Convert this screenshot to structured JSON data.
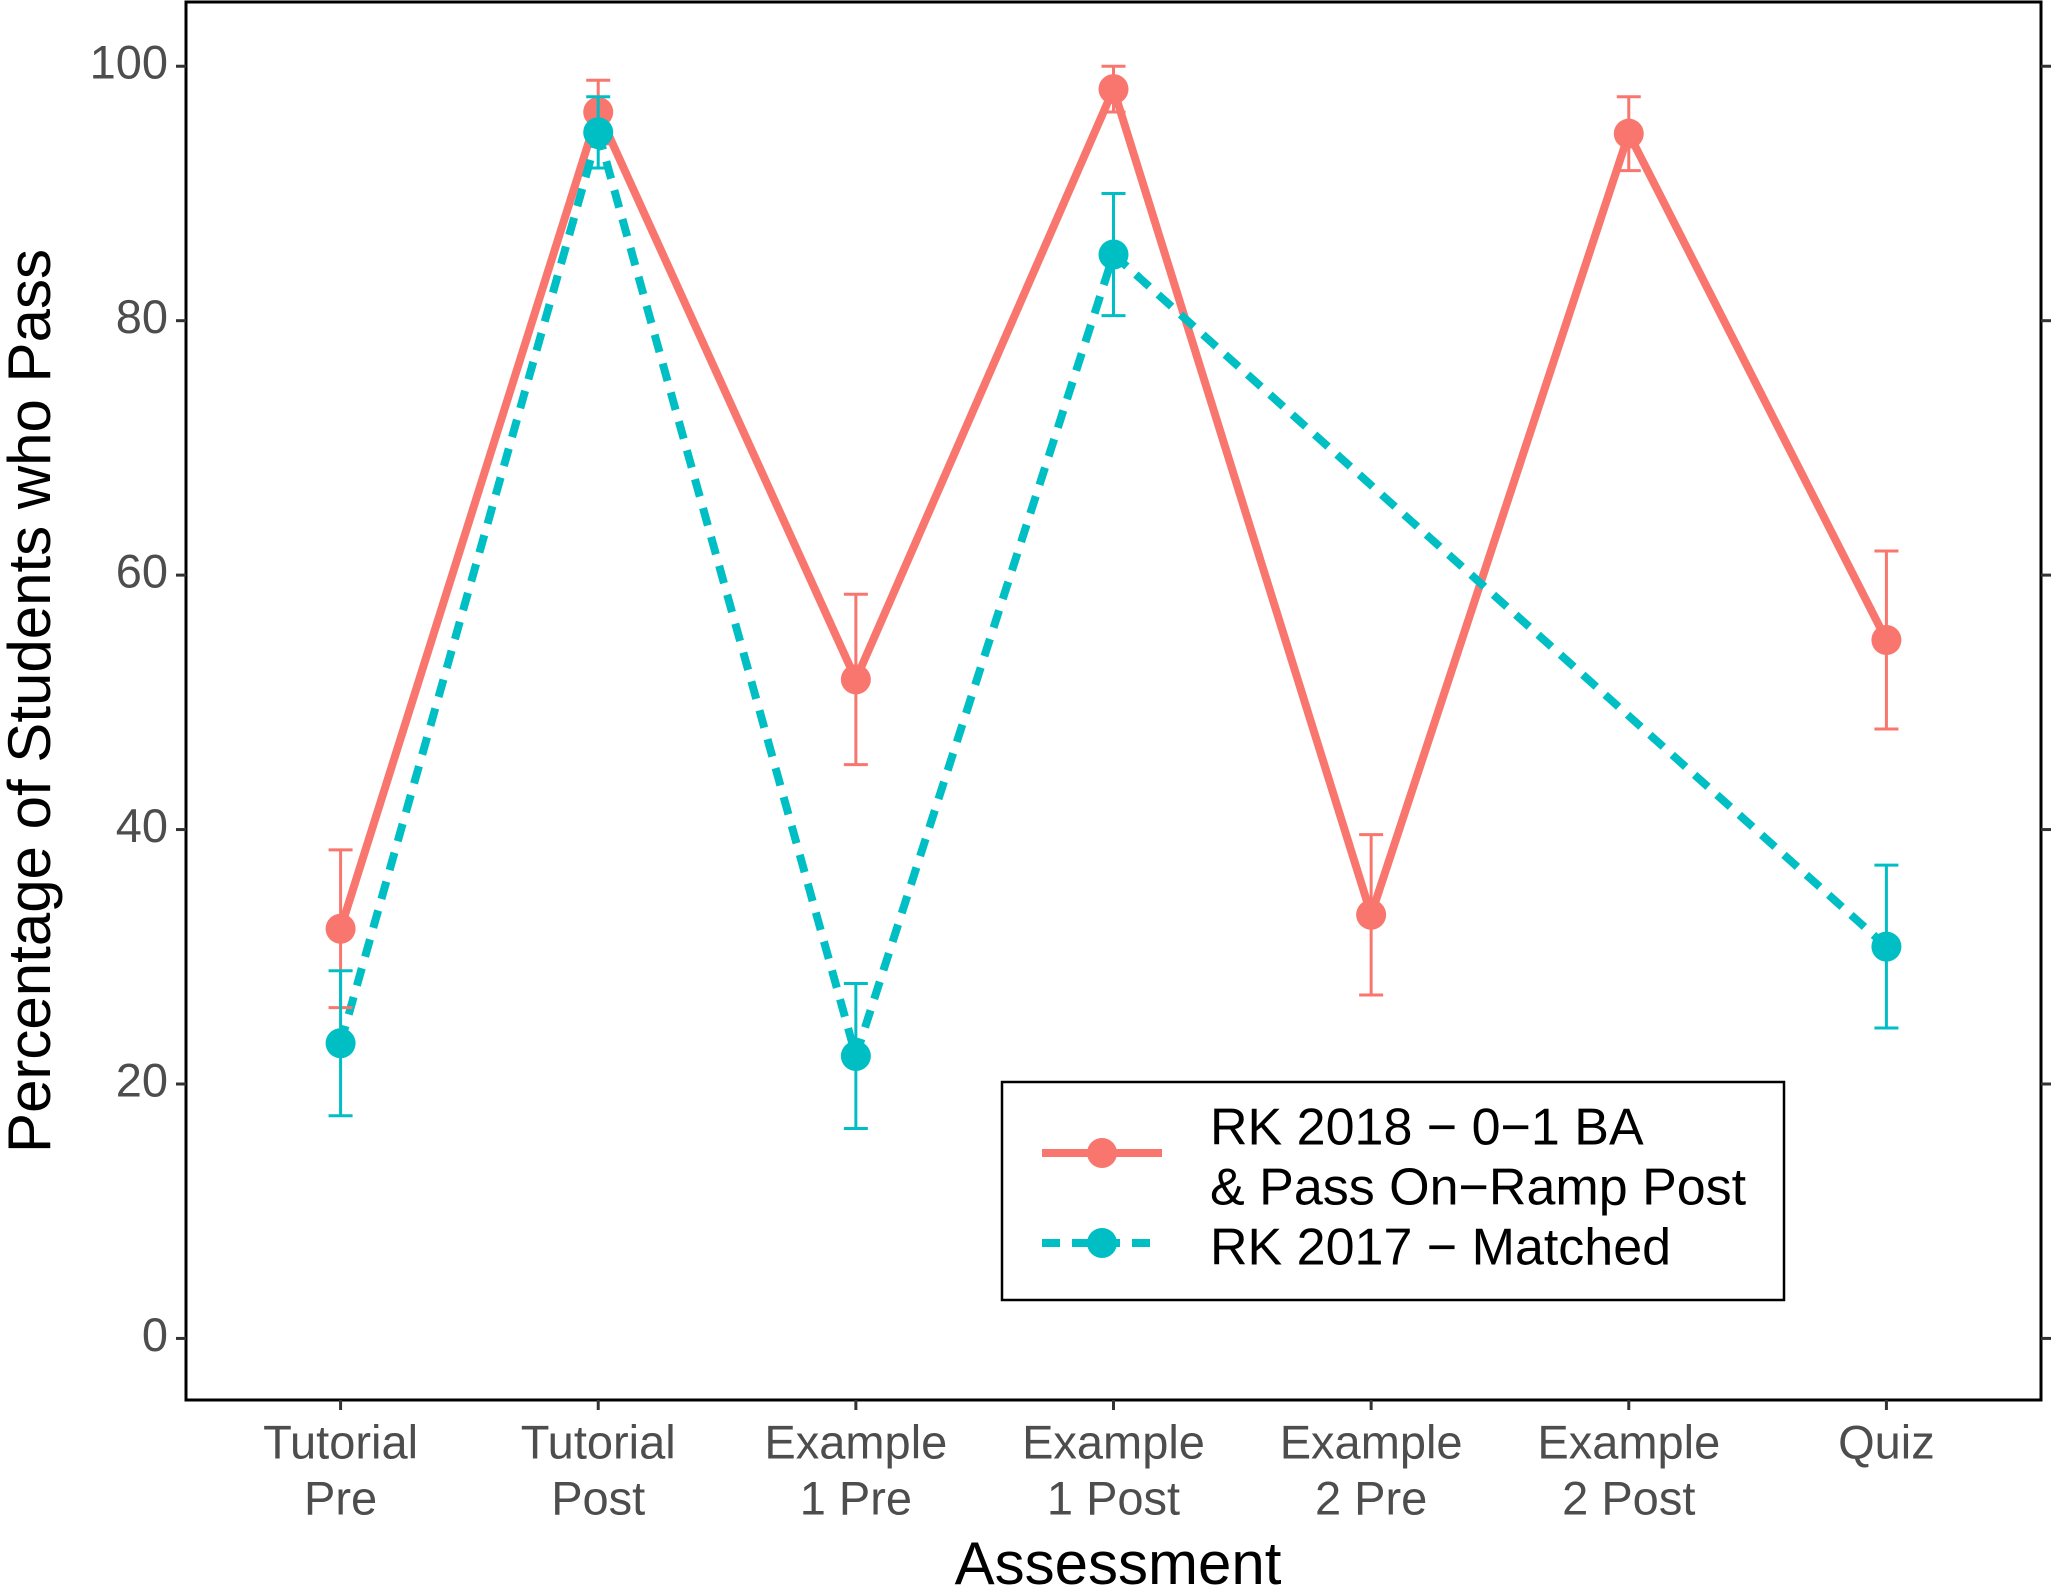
{
  "chart_data": {
    "type": "line",
    "x_label": "Assessment",
    "y_label": "Percentage of Students who Pass",
    "categories": [
      [
        "Tutorial",
        "Pre"
      ],
      [
        "Tutorial",
        "Post"
      ],
      [
        "Example",
        "1 Pre"
      ],
      [
        "Example",
        "1 Post"
      ],
      [
        "Example",
        "2 Pre"
      ],
      [
        "Example",
        "2 Post"
      ],
      [
        "Quiz"
      ]
    ],
    "series": [
      {
        "name": [
          "RK 2018 − 0−1 BA",
          "& Pass On−Ramp Post"
        ],
        "color": "#F8766D",
        "dash": false,
        "values": [
          32.2,
          96.4,
          51.8,
          98.2,
          33.3,
          94.7,
          54.9
        ],
        "errors": [
          6.2,
          2.5,
          6.7,
          1.8,
          6.3,
          2.9,
          7.0
        ]
      },
      {
        "name": [
          "RK 2017 − Matched"
        ],
        "color": "#00BFC4",
        "dash": true,
        "values": [
          23.2,
          94.8,
          22.2,
          85.2,
          null,
          null,
          30.8
        ],
        "errors": [
          5.7,
          2.8,
          5.7,
          4.8,
          null,
          null,
          6.4
        ]
      }
    ],
    "ylim": [
      -4.84,
      105.05
    ],
    "yticks": [
      0,
      20,
      40,
      60,
      80,
      100
    ],
    "legend": "bottom-right"
  }
}
